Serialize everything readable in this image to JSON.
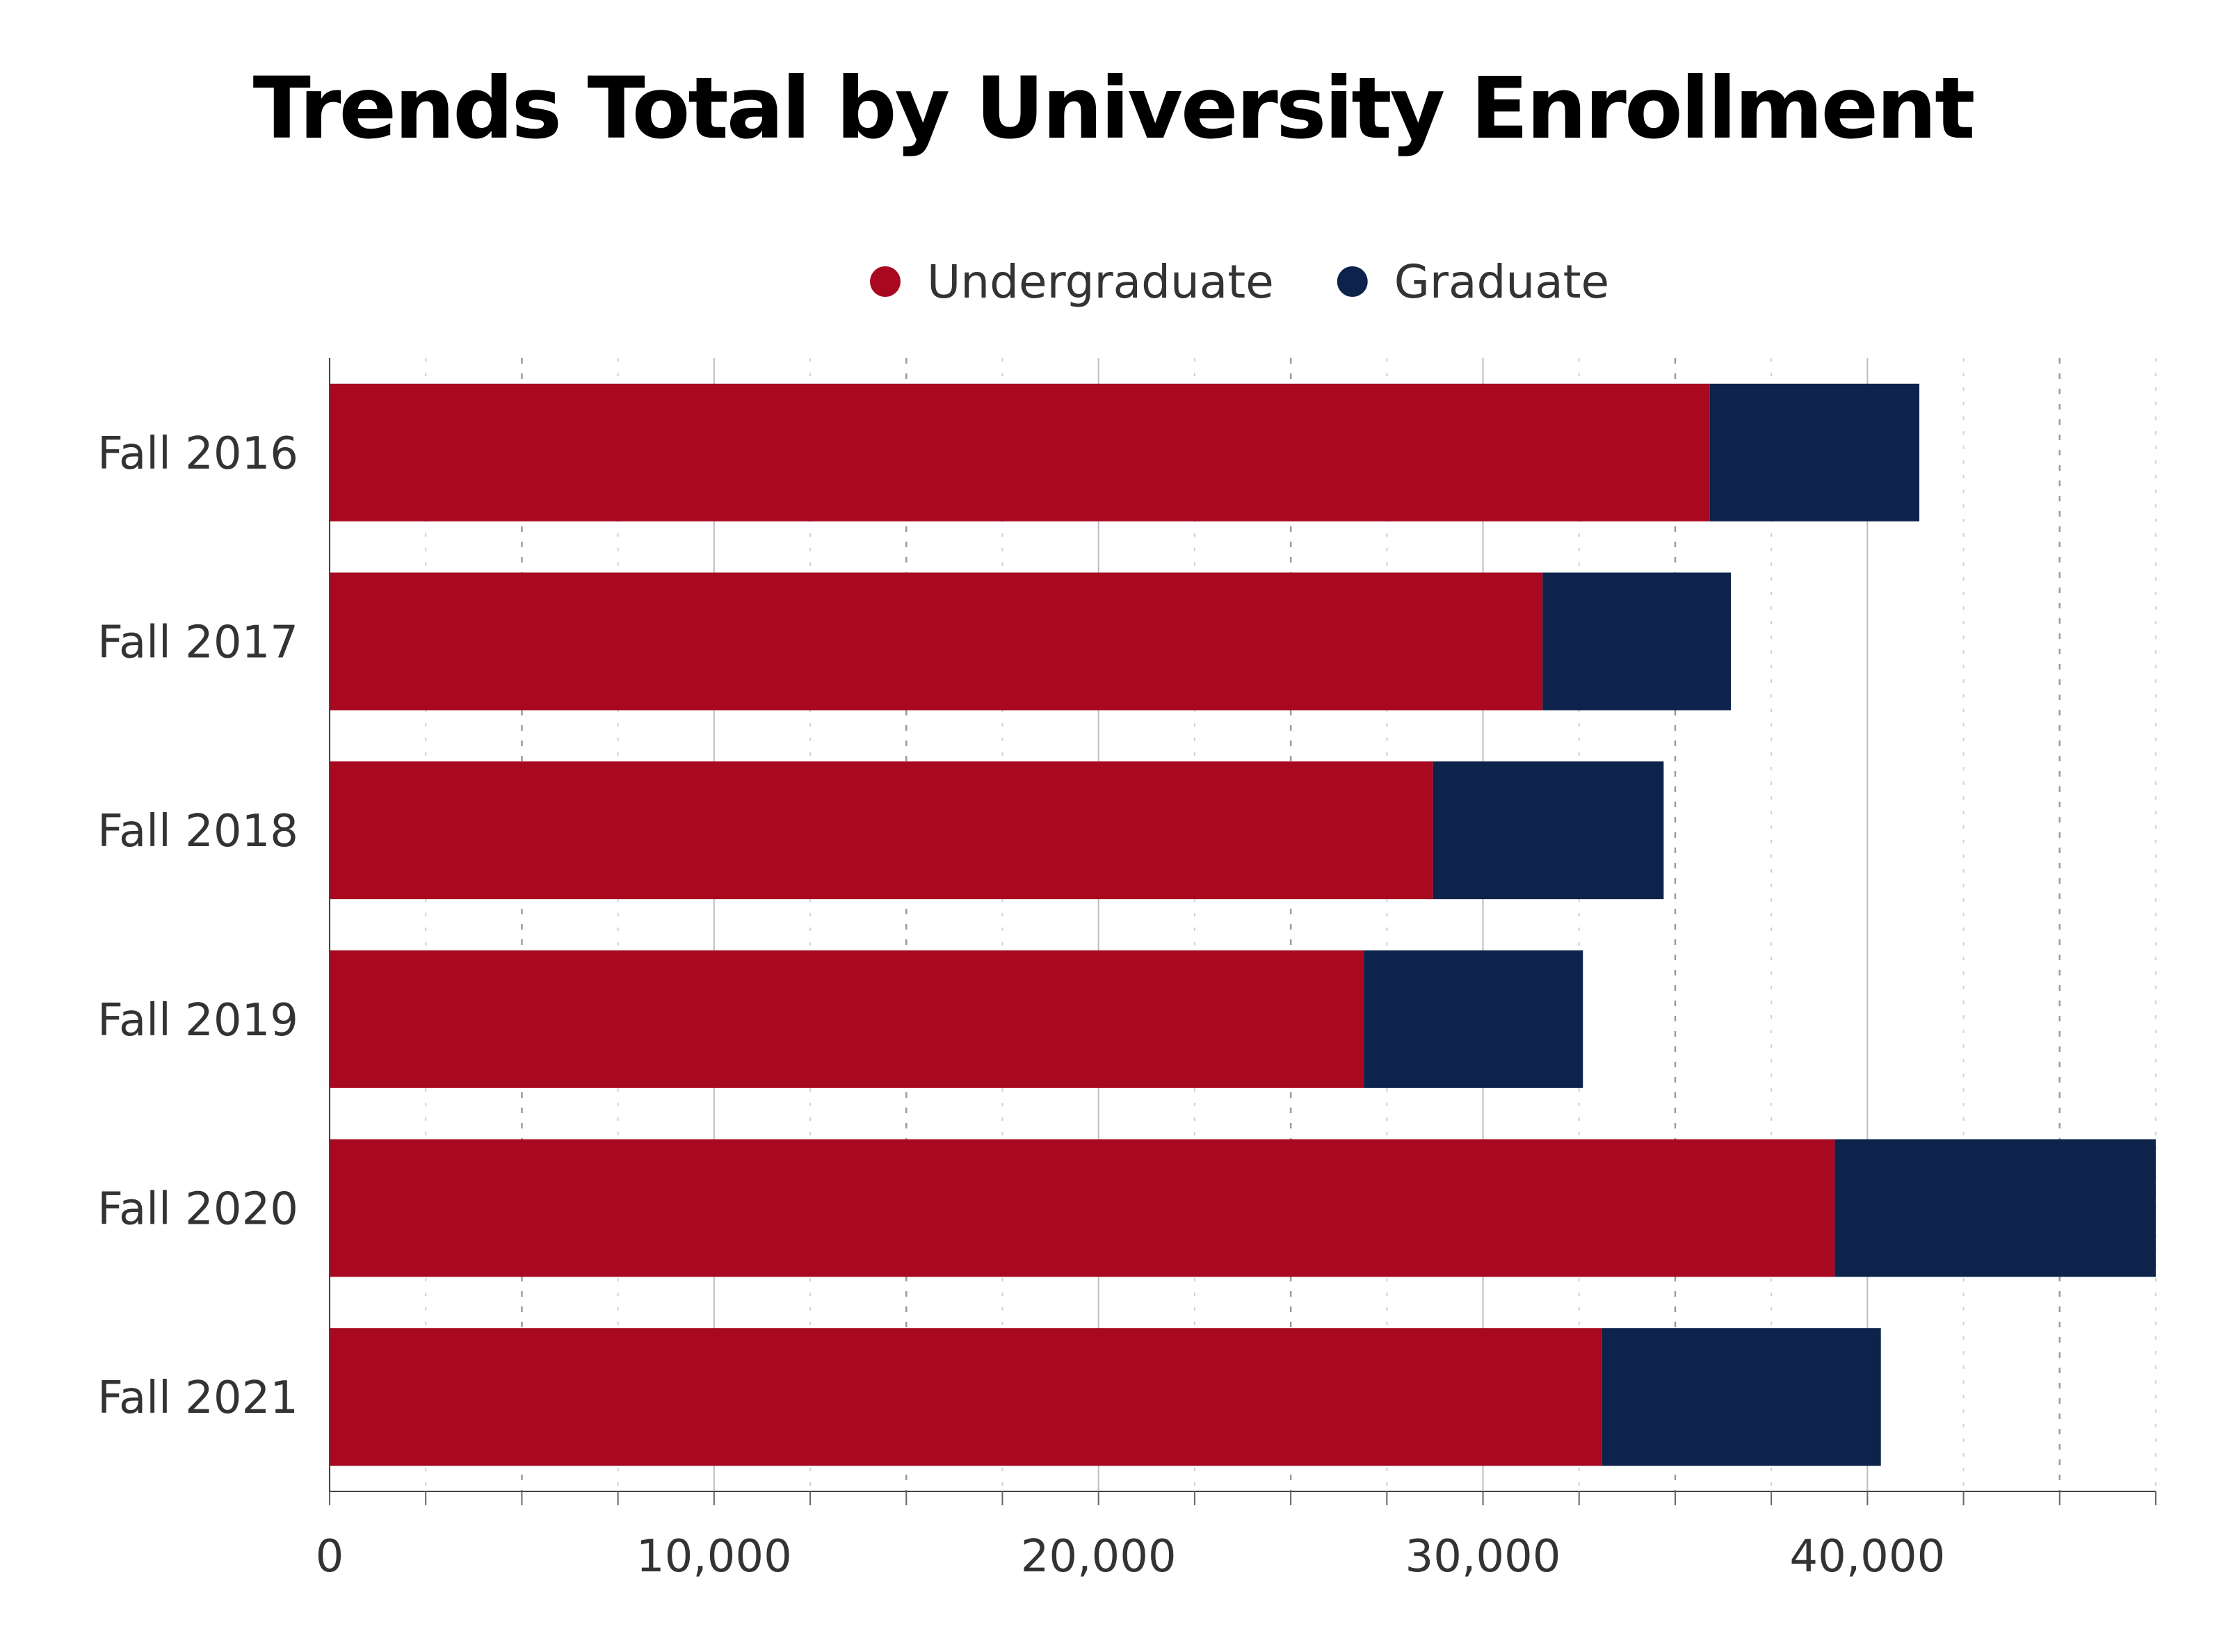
{
  "chart_data": {
    "type": "bar",
    "orientation": "horizontal",
    "stacked": true,
    "title": "Trends Total by University Enrollment",
    "categories": [
      "Fall 2016",
      "Fall 2017",
      "Fall 2018",
      "Fall 2019",
      "Fall 2020",
      "Fall 2021"
    ],
    "series": [
      {
        "name": "Undergraduate",
        "color": "#a80820",
        "values": [
          35900,
          31550,
          28700,
          26900,
          39150,
          33100
        ]
      },
      {
        "name": "Graduate",
        "color": "#0d234b",
        "values": [
          5450,
          4900,
          6000,
          5700,
          8350,
          7250
        ]
      }
    ],
    "x_ticks": [
      "0",
      "10,000",
      "20,000",
      "30,000",
      "40,000"
    ],
    "x_tick_values": [
      0,
      10000,
      20000,
      30000,
      40000
    ],
    "xlim": [
      0,
      47500
    ],
    "grid": true,
    "legend_position": "top"
  }
}
